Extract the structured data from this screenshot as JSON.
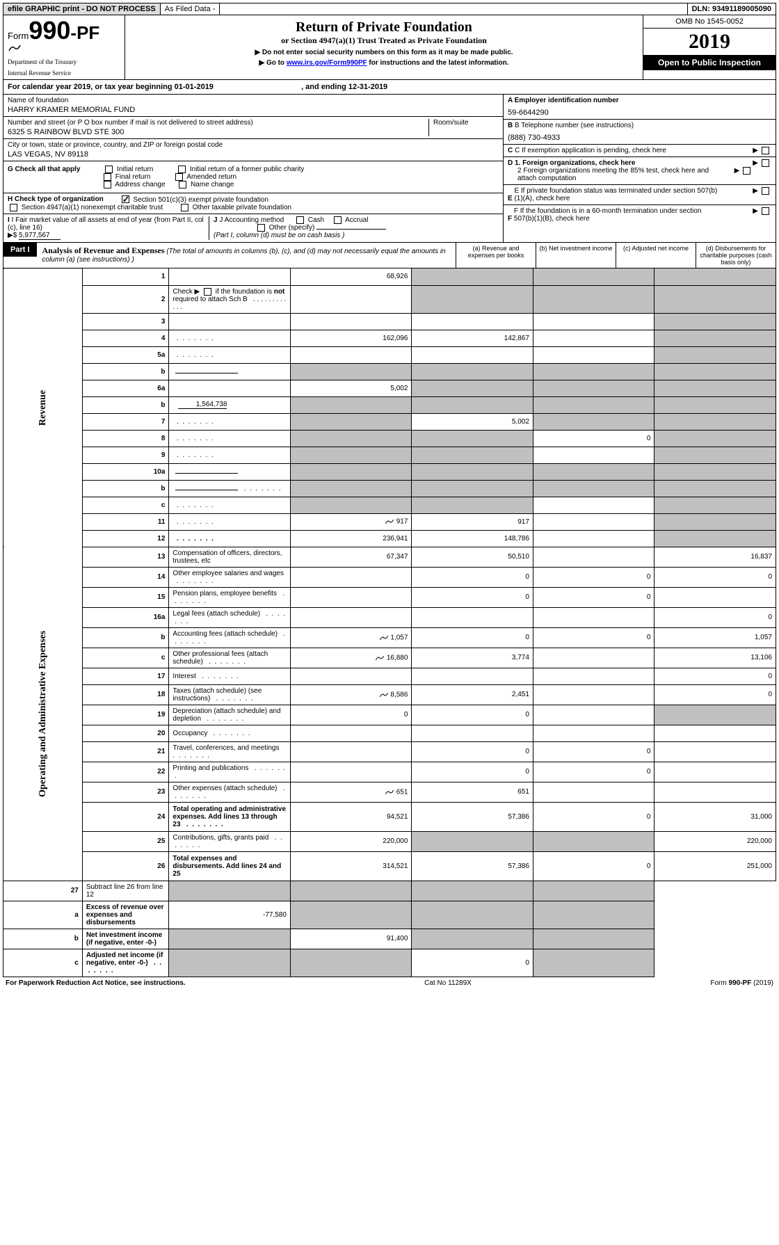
{
  "topbar": {
    "graphic": "efile GRAPHIC print - DO NOT PROCESS",
    "asfiled": "As Filed Data -",
    "dln_lbl": "DLN:",
    "dln": "93491189005090"
  },
  "header": {
    "form_prefix": "Form",
    "form_num": "990-PF",
    "dept1": "Department of the Treasury",
    "dept2": "Internal Revenue Service",
    "title": "Return of Private Foundation",
    "subtitle": "or Section 4947(a)(1) Trust Treated as Private Foundation",
    "instr1": "▶ Do not enter social security numbers on this form as it may be made public.",
    "instr2_pre": "▶ Go to ",
    "instr2_link": "www.irs.gov/Form990PF",
    "instr2_post": " for instructions and the latest information.",
    "omb": "OMB No 1545-0052",
    "year": "2019",
    "open": "Open to Public Inspection"
  },
  "calyear": {
    "pre": "For calendar year 2019, or tax year beginning ",
    "begin": "01-01-2019",
    "mid": " , and ending ",
    "end": "12-31-2019"
  },
  "id": {
    "name_lbl": "Name of foundation",
    "name": "HARRY KRAMER MEMORIAL FUND",
    "addr_lbl": "Number and street (or P O  box number if mail is not delivered to street address)",
    "room_lbl": "Room/suite",
    "addr": "6325 S RAINBOW BLVD STE 300",
    "city_lbl": "City or town, state or province, country, and ZIP or foreign postal code",
    "city": "LAS VEGAS, NV  89118",
    "a_lbl": "A Employer identification number",
    "a_val": "59-6644290",
    "b_lbl": "B Telephone number (see instructions)",
    "b_val": "(888) 730-4933",
    "c_lbl": "C If exemption application is pending, check here",
    "d1_lbl": "D 1. Foreign organizations, check here",
    "d2_lbl": "2 Foreign organizations meeting the 85% test, check here and attach computation",
    "e_lbl": "E If private foundation status was terminated under section 507(b)(1)(A), check here",
    "f_lbl": "F If the foundation is in a 60-month termination under section 507(b)(1)(B), check here"
  },
  "g": {
    "lbl": "G Check all that apply",
    "opts": [
      "Initial return",
      "Initial return of a former public charity",
      "Final return",
      "Amended return",
      "Address change",
      "Name change"
    ]
  },
  "h": {
    "lbl": "H Check type of organization",
    "opt1": "Section 501(c)(3) exempt private foundation",
    "opt2": "Section 4947(a)(1) nonexempt charitable trust",
    "opt3": "Other taxable private foundation"
  },
  "i": {
    "lbl": "I Fair market value of all assets at end of year (from Part II, col  (c), line 16)",
    "arrow": "▶$",
    "val": "5,977,567"
  },
  "j": {
    "lbl": "J Accounting method",
    "cash": "Cash",
    "accrual": "Accrual",
    "other": "Other (specify)",
    "note": "(Part I, column (d) must be on cash basis )"
  },
  "part1": {
    "lbl": "Part I",
    "title": "Analysis of Revenue and Expenses",
    "note": " (The total of amounts in columns (b), (c), and (d) may not necessarily equal the amounts in column (a) (see instructions) )",
    "col_a": "(a) Revenue and expenses per books",
    "col_b": "(b) Net investment income",
    "col_c": "(c) Adjusted net income",
    "col_d": "(d) Disbursements for charitable purposes (cash basis only)"
  },
  "side": {
    "rev": "Revenue",
    "exp": "Operating and Administrative Expenses"
  },
  "rows": [
    {
      "n": "1",
      "d": "",
      "a": "68,926",
      "b": "",
      "c": "",
      "gb": true,
      "gc": true,
      "gd": true
    },
    {
      "n": "2",
      "d": "",
      "a": "",
      "b": "",
      "c": "",
      "desc_html": true,
      "gb": true,
      "gc": true,
      "gd": true
    },
    {
      "n": "3",
      "d": "",
      "a": "",
      "b": "",
      "c": "",
      "gd": true
    },
    {
      "n": "4",
      "d": "",
      "a": "162,096",
      "b": "142,867",
      "c": "",
      "dots": true,
      "gd": true
    },
    {
      "n": "5a",
      "d": "",
      "a": "",
      "b": "",
      "c": "",
      "dots": true,
      "gd": true
    },
    {
      "n": "b",
      "d": "",
      "a": "",
      "b": "",
      "c": "",
      "ga": true,
      "gb": true,
      "gc": true,
      "gd": true,
      "inline": true
    },
    {
      "n": "6a",
      "d": "",
      "a": "5,002",
      "b": "",
      "c": "",
      "gb": true,
      "gc": true,
      "gd": true
    },
    {
      "n": "b",
      "d": "",
      "a": "",
      "b": "",
      "c": "",
      "ga": true,
      "gb": true,
      "gc": true,
      "gd": true,
      "inline_val": "1,564,738"
    },
    {
      "n": "7",
      "d": "",
      "a": "",
      "b": "5,002",
      "c": "",
      "dots": true,
      "ga": true,
      "gc": true,
      "gd": true
    },
    {
      "n": "8",
      "d": "",
      "a": "",
      "b": "",
      "c": "0",
      "dots": true,
      "ga": true,
      "gb": true,
      "gd": true
    },
    {
      "n": "9",
      "d": "",
      "a": "",
      "b": "",
      "c": "",
      "dots": true,
      "ga": true,
      "gb": true,
      "gd": true
    },
    {
      "n": "10a",
      "d": "",
      "a": "",
      "b": "",
      "c": "",
      "ga": true,
      "gb": true,
      "gc": true,
      "gd": true,
      "inline": true
    },
    {
      "n": "b",
      "d": "",
      "a": "",
      "b": "",
      "c": "",
      "dots": true,
      "ga": true,
      "gb": true,
      "gc": true,
      "gd": true,
      "inline": true
    },
    {
      "n": "c",
      "d": "",
      "a": "",
      "b": "",
      "c": "",
      "dots": true,
      "ga": true,
      "gb": true,
      "gd": true
    },
    {
      "n": "11",
      "d": "",
      "a": "917",
      "b": "917",
      "c": "",
      "dots": true,
      "icon": true,
      "gd": true
    },
    {
      "n": "12",
      "d": "",
      "a": "236,941",
      "b": "148,786",
      "c": "",
      "dots": true,
      "bold": true,
      "gd": true
    }
  ],
  "exp_rows": [
    {
      "n": "13",
      "d": "16,837",
      "a": "67,347",
      "b": "50,510",
      "c": ""
    },
    {
      "n": "14",
      "d": "0",
      "a": "",
      "b": "0",
      "c": "0",
      "dots": true
    },
    {
      "n": "15",
      "d": "",
      "a": "",
      "b": "0",
      "c": "0",
      "dots": true
    },
    {
      "n": "16a",
      "d": "0",
      "a": "",
      "b": "",
      "c": "",
      "dots": true
    },
    {
      "n": "b",
      "d": "1,057",
      "a": "1,057",
      "b": "0",
      "c": "0",
      "dots": true,
      "icon": true
    },
    {
      "n": "c",
      "d": "13,106",
      "a": "16,880",
      "b": "3,774",
      "c": "",
      "dots": true,
      "icon": true
    },
    {
      "n": "17",
      "d": "0",
      "a": "",
      "b": "",
      "c": "",
      "dots": true
    },
    {
      "n": "18",
      "d": "0",
      "a": "8,586",
      "b": "2,451",
      "c": "",
      "dots": true,
      "icon": true
    },
    {
      "n": "19",
      "d": "",
      "a": "0",
      "b": "0",
      "c": "",
      "dots": true,
      "gd": true
    },
    {
      "n": "20",
      "d": "",
      "a": "",
      "b": "",
      "c": "",
      "dots": true
    },
    {
      "n": "21",
      "d": "",
      "a": "",
      "b": "0",
      "c": "0",
      "dots": true
    },
    {
      "n": "22",
      "d": "",
      "a": "",
      "b": "0",
      "c": "0",
      "dots": true
    },
    {
      "n": "23",
      "d": "",
      "a": "651",
      "b": "651",
      "c": "",
      "dots": true,
      "icon": true
    },
    {
      "n": "24",
      "d": "31,000",
      "a": "94,521",
      "b": "57,386",
      "c": "0",
      "dots": true,
      "bold": true,
      "tall": true
    },
    {
      "n": "25",
      "d": "220,000",
      "a": "220,000",
      "b": "",
      "c": "",
      "dots": true,
      "gb": true,
      "gc": true
    },
    {
      "n": "26",
      "d": "251,000",
      "a": "314,521",
      "b": "57,386",
      "c": "0",
      "bold": true,
      "tall": true
    }
  ],
  "bottom_rows": [
    {
      "n": "27",
      "d": "",
      "a": "",
      "b": "",
      "c": "",
      "ga": true,
      "gb": true,
      "gc": true,
      "gd": true
    },
    {
      "n": "a",
      "d": "",
      "a": "-77,580",
      "b": "",
      "c": "",
      "bold": true,
      "gb": true,
      "gc": true,
      "gd": true
    },
    {
      "n": "b",
      "d": "",
      "a": "",
      "b": "91,400",
      "c": "",
      "bold": true,
      "ga": true,
      "gc": true,
      "gd": true
    },
    {
      "n": "c",
      "d": "",
      "a": "",
      "b": "",
      "c": "0",
      "bold": true,
      "dots": true,
      "ga": true,
      "gb": true,
      "gd": true
    }
  ],
  "footer": {
    "left": "For Paperwork Reduction Act Notice, see instructions.",
    "mid": "Cat  No  11289X",
    "right": "Form 990-PF (2019)"
  },
  "colors": {
    "gray_bg": "#c0c0c0",
    "topbar_gray": "#dcdcdc",
    "link": "#0000ee"
  }
}
